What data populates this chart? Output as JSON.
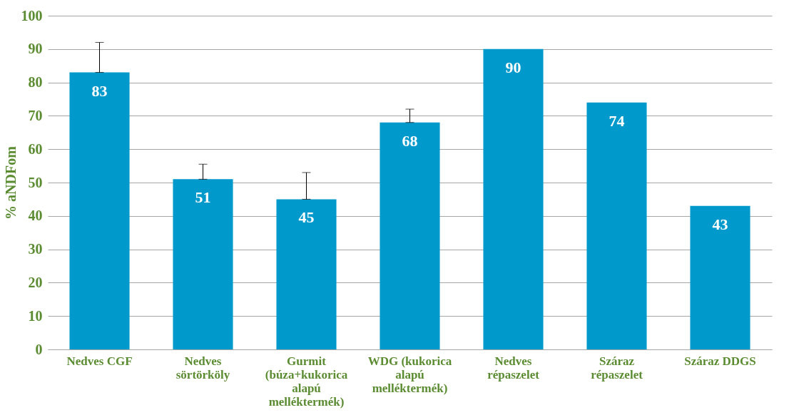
{
  "chart_data": {
    "type": "bar",
    "ylabel": "% aNDFom",
    "categories": [
      "Nedves CGF",
      "Nedves sörtörköly",
      "Gurmit (búza+kukorica alapú melléktermék)",
      "WDG (kukorica alapú melléktermék)",
      "Nedves répaszelet",
      "Száraz répaszelet",
      "Száraz DDGS"
    ],
    "values": [
      83,
      51,
      45,
      68,
      90,
      74,
      43
    ],
    "errors": [
      [
        83,
        92
      ],
      [
        51,
        55.5
      ],
      [
        45,
        53
      ],
      [
        68,
        72
      ],
      null,
      null,
      null
    ],
    "color": "#0099cc",
    "data_labels": true,
    "grid": "y",
    "ylim": [
      0,
      100
    ],
    "yticks": [
      0,
      10,
      20,
      30,
      40,
      50,
      60,
      70,
      80,
      90,
      100
    ]
  }
}
